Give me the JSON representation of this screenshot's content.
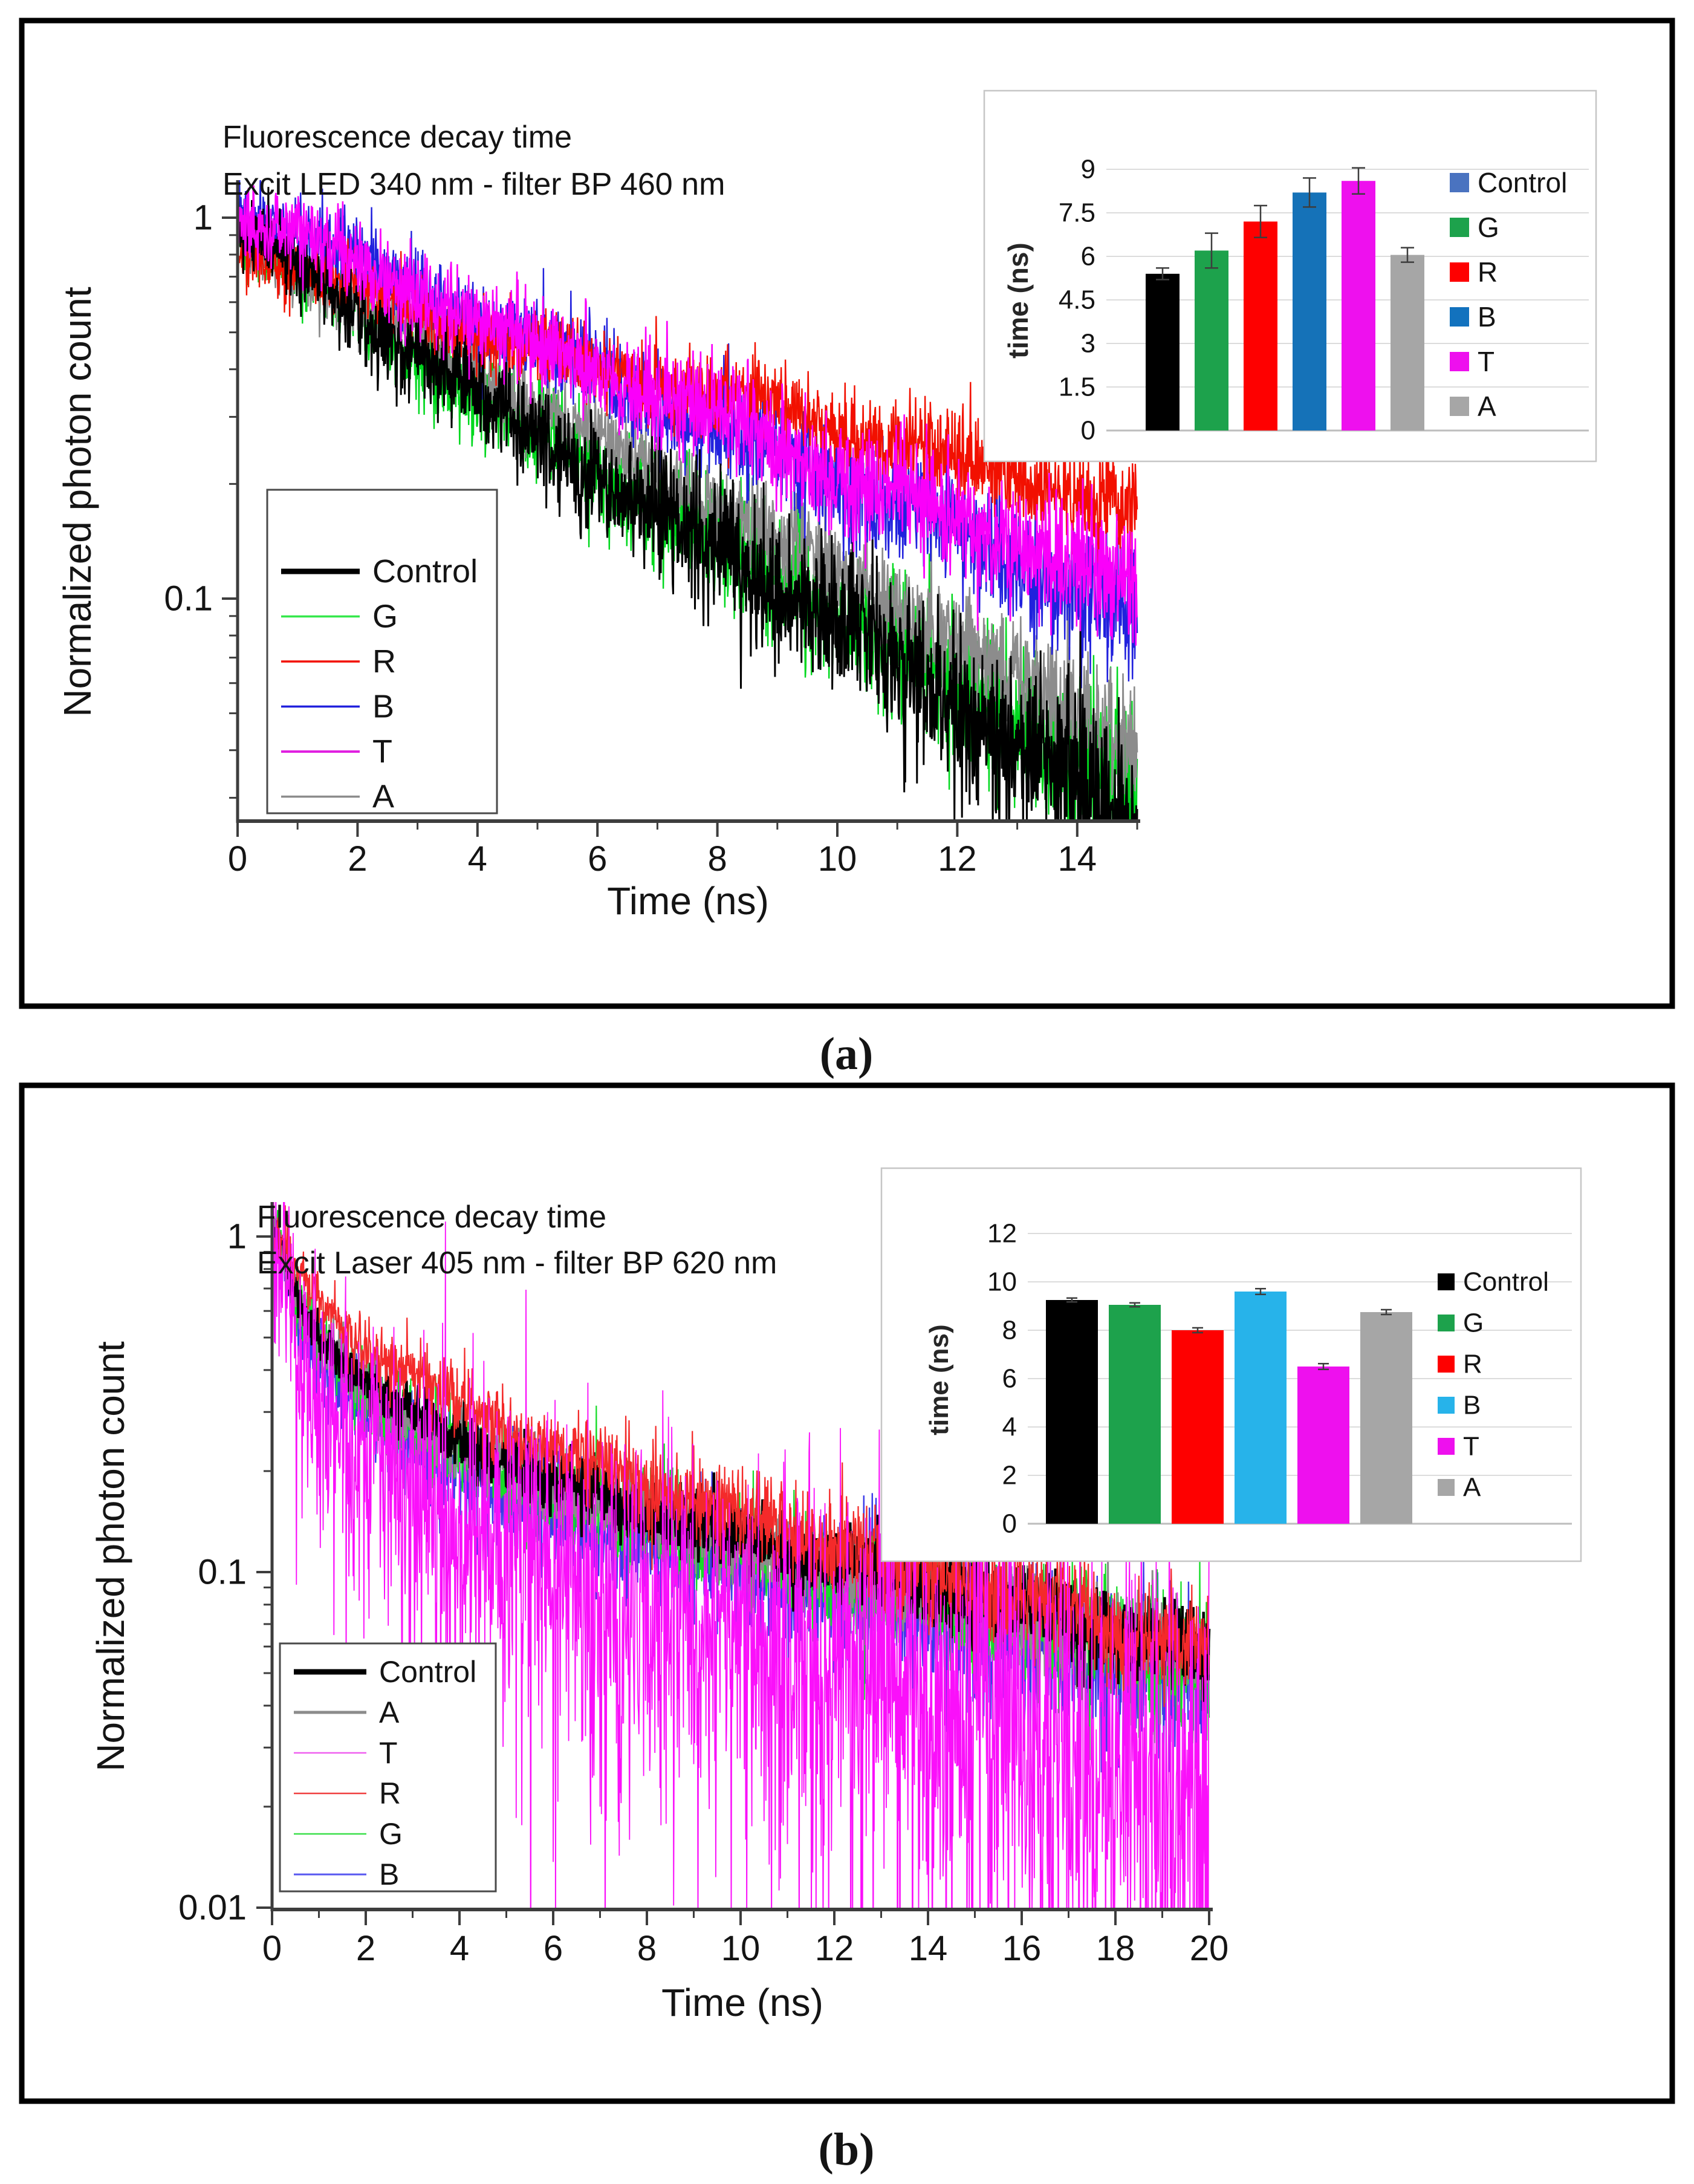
{
  "figure": {
    "caption_a": "(a)",
    "caption_b": "(b)"
  },
  "colors": {
    "axis": "#3d3d3d",
    "grid": "#dcdcdc",
    "grid_baseline": "#bdbdbd",
    "inset_border": "#c6c6c6",
    "legend_border": "#4a4a4a",
    "error_bar": "#3d3d3d"
  },
  "chart_data": [
    {
      "id": "a_decay",
      "type": "line",
      "title": "Fluorescence decay time",
      "subtitle": "Excit LED 340 nm - filter BP 460 nm",
      "xlabel": "Time (ns)",
      "ylabel": "Normalized photon count",
      "x_range_ns": [
        0,
        15
      ],
      "x_tick_values": [
        0,
        2,
        4,
        6,
        8,
        10,
        12,
        14
      ],
      "x_tick_labels": [
        "0",
        "2",
        "4",
        "6",
        "8",
        "10",
        "12",
        "14"
      ],
      "y_scale": "log",
      "y_tick_values": [
        1,
        0.1
      ],
      "y_tick_labels": [
        "1",
        "0.1"
      ],
      "y_lim": [
        0.026,
        1.45
      ],
      "grid": false,
      "legend_position": "lower-left",
      "legend": [
        {
          "label": "Control",
          "color": "#000000",
          "lw": 9
        },
        {
          "label": "G",
          "color": "#35e84a",
          "lw": 3.5
        },
        {
          "label": "R",
          "color": "#f21000",
          "lw": 3.5
        },
        {
          "label": "B",
          "color": "#2121dd",
          "lw": 3.5
        },
        {
          "label": "T",
          "color": "#e020e0",
          "lw": 4
        },
        {
          "label": "A",
          "color": "#8c8c8c",
          "lw": 3.5
        }
      ],
      "series": [
        {
          "name": "Control",
          "color": "#000000",
          "lw": 3.0,
          "noise": 0.11,
          "t": [
            0,
            4,
            15
          ],
          "v": [
            0.95,
            0.34,
            0.027
          ]
        },
        {
          "name": "G",
          "color": "#00d81e",
          "lw": 2.4,
          "noise": 0.1,
          "t": [
            0,
            4,
            15
          ],
          "v": [
            0.93,
            0.345,
            0.032
          ]
        },
        {
          "name": "R",
          "color": "#f21000",
          "lw": 2.4,
          "noise": 0.095,
          "t": [
            0,
            4,
            15
          ],
          "v": [
            0.84,
            0.5,
            0.175
          ]
        },
        {
          "name": "B",
          "color": "#2121dd",
          "lw": 2.4,
          "noise": 0.1,
          "t": [
            0,
            4,
            15
          ],
          "v": [
            1.1,
            0.54,
            0.092
          ]
        },
        {
          "name": "T",
          "color": "#fa00fa",
          "lw": 2.6,
          "noise": 0.11,
          "t": [
            0,
            4,
            15
          ],
          "v": [
            1.06,
            0.54,
            0.105
          ]
        },
        {
          "name": "A",
          "color": "#8c8c8c",
          "lw": 2.6,
          "noise": 0.085,
          "t": [
            0,
            4,
            15
          ],
          "v": [
            0.9,
            0.4,
            0.042
          ]
        }
      ],
      "draw_order": [
        "G",
        "A",
        "B",
        "R",
        "Control",
        "T"
      ]
    },
    {
      "id": "a_inset",
      "type": "bar",
      "ylabel": "time (ns)",
      "categories": [
        "Control",
        "G",
        "R",
        "B",
        "T",
        "A"
      ],
      "values": [
        5.4,
        6.2,
        7.2,
        8.2,
        8.6,
        6.05
      ],
      "errors": [
        0.2,
        0.6,
        0.55,
        0.5,
        0.45,
        0.25
      ],
      "bar_colors": [
        "#000000",
        "#1da24c",
        "#fe0000",
        "#1572b8",
        "#ee10ee",
        "#a6a6a6"
      ],
      "legend_colors": [
        "#4a73c0",
        "#1da24c",
        "#fe0000",
        "#1272be",
        "#ee10ee",
        "#a6a6a6"
      ],
      "y_tick_values": [
        0,
        1.5,
        3,
        4.5,
        6,
        7.5,
        9
      ],
      "y_tick_labels": [
        "0",
        "1.5",
        "3",
        "4.5",
        "6",
        "7.5",
        "9"
      ],
      "ylim": [
        0,
        9.9
      ],
      "grid": true,
      "legend_position": "right"
    },
    {
      "id": "b_decay",
      "type": "line",
      "title": "Fluorescence decay time",
      "subtitle": "Excit Laser 405 nm - filter BP 620 nm",
      "xlabel": "Time (ns)",
      "ylabel": "Normalized photon count",
      "x_range_ns": [
        0,
        20
      ],
      "x_tick_values": [
        0,
        2,
        4,
        6,
        8,
        10,
        12,
        14,
        16,
        18,
        20
      ],
      "x_tick_labels": [
        "0",
        "2",
        "4",
        "6",
        "8",
        "10",
        "12",
        "14",
        "16",
        "18",
        "20"
      ],
      "y_scale": "log",
      "y_tick_values": [
        1,
        0.1,
        0.01
      ],
      "y_tick_labels": [
        "1",
        "0.1",
        "0.01"
      ],
      "y_lim": [
        0.01,
        1.3
      ],
      "grid": false,
      "legend_position": "lower-left",
      "legend": [
        {
          "label": "Control",
          "color": "#000000",
          "lw": 9
        },
        {
          "label": "A",
          "color": "#8c8c8c",
          "lw": 5
        },
        {
          "label": "T",
          "color": "#f060f0",
          "lw": 2.5
        },
        {
          "label": "R",
          "color": "#f04040",
          "lw": 2.5
        },
        {
          "label": "G",
          "color": "#3ce04a",
          "lw": 2.5
        },
        {
          "label": "B",
          "color": "#5858f0",
          "lw": 3
        }
      ],
      "series": [
        {
          "name": "Control",
          "color": "#000000",
          "lw": 4.5,
          "noise": 0.065,
          "t": [
            0,
            0.15,
            0.6,
            1.0,
            1.5,
            2.5,
            4,
            6,
            10,
            15,
            20
          ],
          "v": [
            0.93,
            1.0,
            0.62,
            0.52,
            0.44,
            0.325,
            0.25,
            0.185,
            0.128,
            0.085,
            0.058
          ]
        },
        {
          "name": "A",
          "color": "#8c8c8c",
          "lw": 3.0,
          "noise": 0.07,
          "t": [
            0,
            0.15,
            0.6,
            1.0,
            1.5,
            2.5,
            4,
            6,
            10,
            15,
            20
          ],
          "v": [
            0.91,
            0.98,
            0.6,
            0.5,
            0.42,
            0.31,
            0.24,
            0.178,
            0.123,
            0.082,
            0.056
          ]
        },
        {
          "name": "G",
          "color": "#16dc28",
          "lw": 2.2,
          "noise": 0.1,
          "t": [
            0,
            0.15,
            0.6,
            1.0,
            1.5,
            2.5,
            4,
            6,
            10,
            15,
            20
          ],
          "v": [
            0.92,
            0.99,
            0.59,
            0.48,
            0.4,
            0.3,
            0.235,
            0.172,
            0.118,
            0.078,
            0.053
          ]
        },
        {
          "name": "B",
          "color": "#3b3be8",
          "lw": 2.4,
          "noise": 0.11,
          "t": [
            0,
            0.15,
            0.6,
            1.0,
            1.5,
            2.5,
            4,
            6,
            10,
            15,
            20
          ],
          "v": [
            0.9,
            0.97,
            0.55,
            0.44,
            0.36,
            0.265,
            0.205,
            0.15,
            0.103,
            0.068,
            0.046
          ]
        },
        {
          "name": "R",
          "color": "#f42a2a",
          "lw": 2.2,
          "noise": 0.09,
          "t": [
            0,
            0.15,
            0.7,
            1.2,
            1.6,
            2.5,
            4,
            6,
            10,
            15,
            20
          ],
          "v": [
            0.9,
            0.98,
            0.72,
            0.62,
            0.54,
            0.42,
            0.315,
            0.235,
            0.148,
            0.092,
            0.059
          ]
        },
        {
          "name": "T",
          "color": "#fa10fa",
          "lw": 1.8,
          "noise": 0.3,
          "spiky": true,
          "t": [
            0,
            0.15,
            0.6,
            1.0,
            1.5,
            2.5,
            4,
            6,
            10,
            15,
            20
          ],
          "v": [
            0.88,
            0.95,
            0.5,
            0.4,
            0.305,
            0.225,
            0.165,
            0.12,
            0.077,
            0.048,
            0.033
          ]
        }
      ],
      "draw_order": [
        "B",
        "G",
        "A",
        "Control",
        "R",
        "T"
      ]
    },
    {
      "id": "b_inset",
      "type": "bar",
      "ylabel": "time (ns)",
      "categories": [
        "Control",
        "G",
        "R",
        "B",
        "T",
        "A"
      ],
      "values": [
        9.25,
        9.05,
        8.0,
        9.6,
        6.5,
        8.75
      ],
      "errors": [
        0.08,
        0.08,
        0.1,
        0.12,
        0.12,
        0.1
      ],
      "bar_colors": [
        "#000000",
        "#1da24c",
        "#fe0000",
        "#27b3ea",
        "#ee10ee",
        "#a6a6a6"
      ],
      "legend_colors": [
        "#000000",
        "#1da24c",
        "#fe0000",
        "#27b3ea",
        "#ee10ee",
        "#a6a6a6"
      ],
      "y_tick_values": [
        0,
        2,
        4,
        6,
        8,
        10,
        12
      ],
      "y_tick_labels": [
        "0",
        "2",
        "4",
        "6",
        "8",
        "10",
        "12"
      ],
      "ylim": [
        0,
        12.6
      ],
      "grid": true,
      "legend_position": "right"
    }
  ]
}
